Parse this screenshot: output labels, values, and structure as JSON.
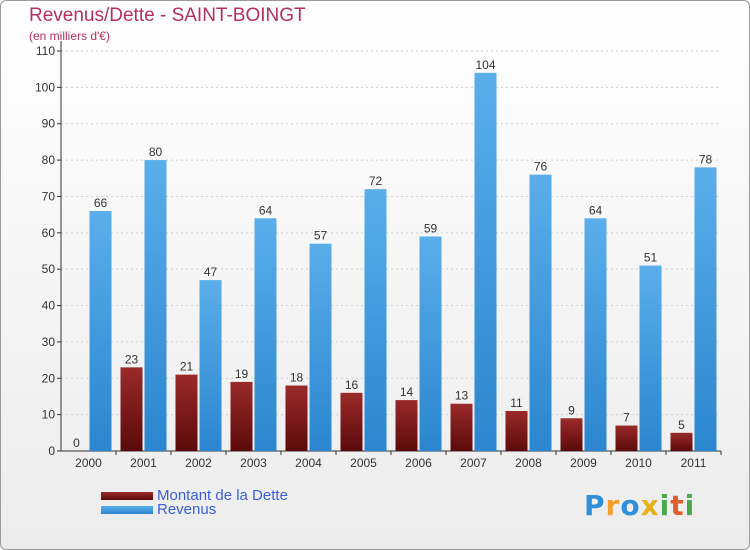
{
  "header": {
    "title": "Revenus/Dette - SAINT-BOINGT",
    "subtitle": "(en milliers d'€)"
  },
  "legend": {
    "debt_label": "Montant de la Dette",
    "revenue_label": "Revenus"
  },
  "logo": {
    "text": "Proxiti",
    "letters": [
      {
        "ch": "P",
        "color": "#2f8fd8"
      },
      {
        "ch": "r",
        "color": "#f2a02b"
      },
      {
        "ch": "o",
        "color": "#2f8fd8"
      },
      {
        "ch": "x",
        "color": "#e8b01d"
      },
      {
        "ch": "i",
        "color": "#4aa84a"
      },
      {
        "ch": "t",
        "color": "#e25c2e"
      },
      {
        "ch": "i",
        "color": "#4aa84a"
      }
    ]
  },
  "colors": {
    "debt_dark": "#5c0a0a",
    "debt_light": "#9a2a2a",
    "revenue_dark": "#2b86cf",
    "revenue_light": "#5aaeea",
    "axis": "#333333",
    "grid": "#cfcfcf"
  },
  "chart_data": {
    "type": "bar",
    "categories": [
      "2000",
      "2001",
      "2002",
      "2003",
      "2004",
      "2005",
      "2006",
      "2007",
      "2008",
      "2009",
      "2010",
      "2011"
    ],
    "series": [
      {
        "name": "Montant de la Dette",
        "values": [
          0,
          23,
          21,
          19,
          18,
          16,
          14,
          13,
          11,
          9,
          7,
          5
        ]
      },
      {
        "name": "Revenus",
        "values": [
          66,
          80,
          47,
          64,
          57,
          72,
          59,
          104,
          76,
          64,
          51,
          78
        ]
      }
    ],
    "ylim": [
      0,
      110
    ],
    "yticks": [
      0,
      10,
      20,
      30,
      40,
      50,
      60,
      70,
      80,
      90,
      100,
      110
    ],
    "grid": true,
    "legend_position": "bottom-left"
  }
}
